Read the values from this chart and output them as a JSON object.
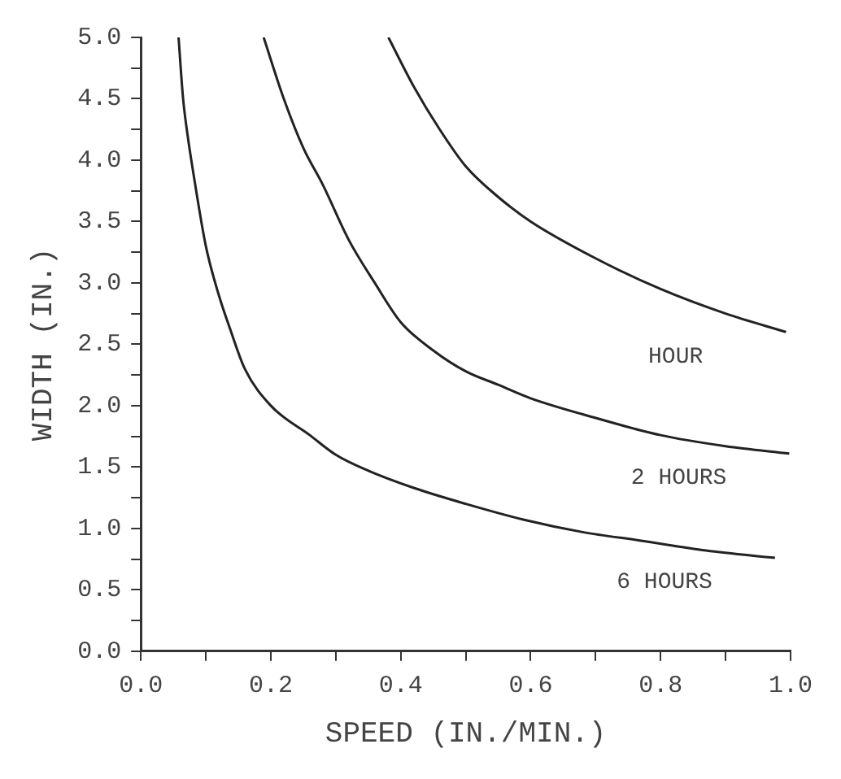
{
  "chart_data": {
    "type": "line",
    "xlabel": "SPEED (IN./MIN.)",
    "ylabel": "WIDTH (IN.)",
    "xlim": [
      0,
      1
    ],
    "ylim": [
      0,
      5
    ],
    "xticks": [
      {
        "value": 0,
        "label": "0.0"
      },
      {
        "value": 0.1,
        "label": null
      },
      {
        "value": 0.2,
        "label": "0.2"
      },
      {
        "value": 0.3,
        "label": null
      },
      {
        "value": 0.4,
        "label": "0.4"
      },
      {
        "value": 0.5,
        "label": null
      },
      {
        "value": 0.6,
        "label": "0.6"
      },
      {
        "value": 0.7,
        "label": null
      },
      {
        "value": 0.8,
        "label": "0.8"
      },
      {
        "value": 0.9,
        "label": null
      },
      {
        "value": 1,
        "label": "1.0"
      }
    ],
    "yticks": [
      {
        "value": 0,
        "label": "0.0"
      },
      {
        "value": 0.25,
        "label": null
      },
      {
        "value": 0.5,
        "label": "0.5"
      },
      {
        "value": 0.75,
        "label": null
      },
      {
        "value": 1,
        "label": "1.0"
      },
      {
        "value": 1.25,
        "label": null
      },
      {
        "value": 1.5,
        "label": "1.5"
      },
      {
        "value": 1.75,
        "label": null
      },
      {
        "value": 2,
        "label": "2.0"
      },
      {
        "value": 2.25,
        "label": null
      },
      {
        "value": 2.5,
        "label": "2.5"
      },
      {
        "value": 2.75,
        "label": null
      },
      {
        "value": 3,
        "label": "3.0"
      },
      {
        "value": 3.25,
        "label": null
      },
      {
        "value": 3.5,
        "label": "3.5"
      },
      {
        "value": 3.75,
        "label": null
      },
      {
        "value": 4,
        "label": "4.0"
      },
      {
        "value": 4.25,
        "label": null
      },
      {
        "value": 4.5,
        "label": "4.5"
      },
      {
        "value": 4.75,
        "label": null
      },
      {
        "value": 5,
        "label": "5.0"
      }
    ],
    "grid": false,
    "legend": false,
    "marker": "none",
    "line_style": "solid",
    "series": [
      {
        "type": "line",
        "name": "HOUR",
        "color": "#222222",
        "x": [
          0.381,
          0.42,
          0.46,
          0.5,
          0.55,
          0.6,
          0.7,
          0.8,
          0.9,
          0.993
        ],
        "values": [
          5.0,
          4.6,
          4.25,
          3.95,
          3.7,
          3.5,
          3.2,
          2.95,
          2.75,
          2.6
        ]
      },
      {
        "type": "line",
        "name": "2 HOURS",
        "color": "#222222",
        "x": [
          0.189,
          0.22,
          0.25,
          0.28,
          0.32,
          0.36,
          0.4,
          0.45,
          0.5,
          0.55,
          0.6,
          0.7,
          0.8,
          0.9,
          0.998
        ],
        "values": [
          5.0,
          4.5,
          4.1,
          3.8,
          3.35,
          3.0,
          2.68,
          2.45,
          2.28,
          2.17,
          2.06,
          1.9,
          1.76,
          1.67,
          1.61
        ]
      },
      {
        "type": "line",
        "name": "6 HOURS",
        "color": "#222222",
        "x": [
          0.058,
          0.065,
          0.072,
          0.08,
          0.1,
          0.12,
          0.137,
          0.16,
          0.2,
          0.26,
          0.3,
          0.35,
          0.42,
          0.5,
          0.59,
          0.68,
          0.77,
          0.87,
          0.976
        ],
        "values": [
          5.0,
          4.5,
          4.2,
          3.92,
          3.3,
          2.9,
          2.63,
          2.3,
          2.0,
          1.76,
          1.6,
          1.47,
          1.33,
          1.2,
          1.07,
          0.97,
          0.9,
          0.82,
          0.76
        ]
      }
    ]
  }
}
